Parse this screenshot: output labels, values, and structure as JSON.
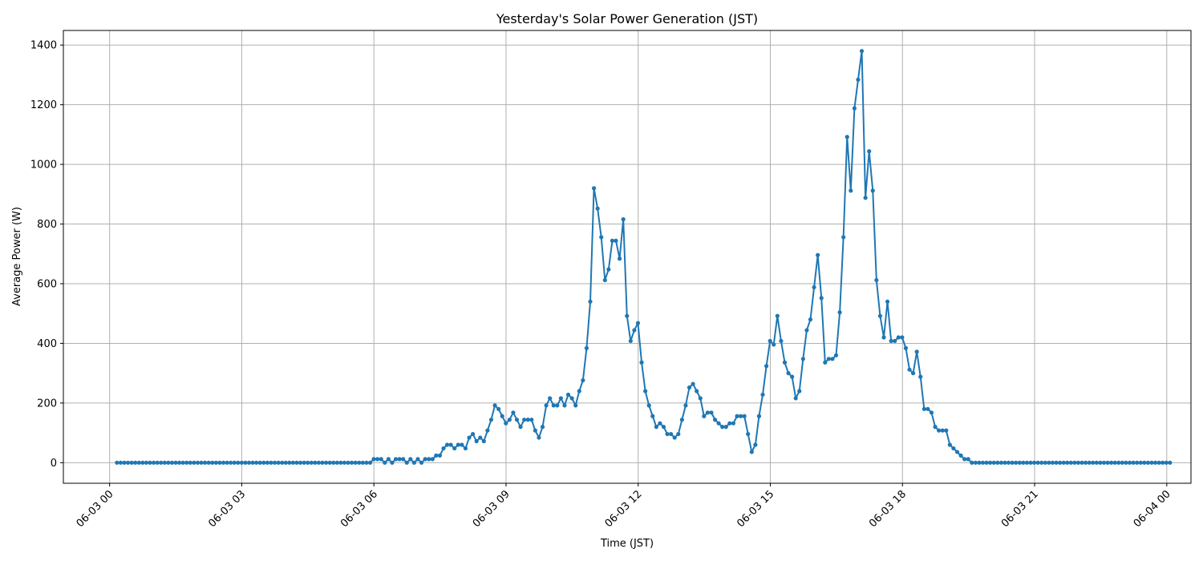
{
  "chart_data": {
    "type": "line",
    "title": "Yesterday's Solar Power Generation (JST)",
    "xlabel": "Time (JST)",
    "ylabel": "Average Power (W)",
    "grid": true,
    "marker": "circle",
    "series_color": "#1f77b4",
    "grid_color": "#b0b0b0",
    "x_axis": {
      "unit": "hours after 06-03 00:00 JST",
      "ticks": [
        0,
        3,
        6,
        9,
        12,
        15,
        18,
        21,
        24
      ],
      "tick_labels": [
        "06-03 00",
        "06-03 03",
        "06-03 06",
        "06-03 09",
        "06-03 12",
        "06-03 15",
        "06-03 18",
        "06-03 21",
        "06-04 00"
      ],
      "xlim": [
        -1.05,
        24.55
      ]
    },
    "y_axis": {
      "ticks": [
        0,
        200,
        400,
        600,
        800,
        1000,
        1200,
        1400
      ],
      "tick_labels": [
        "0",
        "200",
        "400",
        "600",
        "800",
        "1000",
        "1200",
        "1400"
      ],
      "ylim": [
        -69,
        1449
      ]
    },
    "x_start": 0.1667,
    "x_step": 0.0833,
    "series": [
      {
        "values": [
          0,
          0,
          0,
          0,
          0,
          0,
          0,
          0,
          0,
          0,
          0,
          0,
          0,
          0,
          0,
          0,
          0,
          0,
          0,
          0,
          0,
          0,
          0,
          0,
          0,
          0,
          0,
          0,
          0,
          0,
          0,
          0,
          0,
          0,
          0,
          0,
          0,
          0,
          0,
          0,
          0,
          0,
          0,
          0,
          0,
          0,
          0,
          0,
          0,
          0,
          0,
          0,
          0,
          0,
          0,
          0,
          0,
          0,
          0,
          0,
          0,
          0,
          0,
          0,
          0,
          0,
          0,
          0,
          0,
          0,
          12,
          12,
          12,
          0,
          12,
          0,
          12,
          12,
          12,
          0,
          12,
          0,
          12,
          0,
          12,
          12,
          12,
          24,
          24,
          48,
          60,
          60,
          48,
          60,
          60,
          48,
          84,
          96,
          72,
          84,
          72,
          108,
          144,
          192,
          180,
          156,
          132,
          144,
          168,
          144,
          120,
          144,
          144,
          144,
          108,
          84,
          120,
          192,
          216,
          192,
          192,
          216,
          192,
          228,
          216,
          192,
          240,
          276,
          384,
          540,
          920,
          852,
          756,
          612,
          648,
          744,
          744,
          684,
          816,
          492,
          408,
          444,
          468,
          336,
          240,
          192,
          156,
          120,
          132,
          120,
          96,
          96,
          84,
          96,
          144,
          192,
          252,
          264,
          240,
          216,
          156,
          168,
          168,
          144,
          132,
          120,
          120,
          132,
          132,
          156,
          156,
          156,
          96,
          36,
          60,
          156,
          228,
          324,
          408,
          396,
          492,
          408,
          336,
          300,
          288,
          216,
          240,
          348,
          444,
          480,
          588,
          696,
          552,
          336,
          348,
          348,
          360,
          504,
          756,
          1092,
          912,
          1188,
          1284,
          1380,
          888,
          1044,
          912,
          612,
          492,
          420,
          540,
          408,
          408,
          420,
          420,
          384,
          312,
          300,
          372,
          288,
          180,
          180,
          168,
          120,
          108,
          108,
          108,
          60,
          48,
          36,
          24,
          12,
          12,
          0,
          0,
          0,
          0,
          0,
          0,
          0,
          0,
          0,
          0,
          0,
          0,
          0,
          0,
          0,
          0,
          0,
          0,
          0,
          0,
          0,
          0,
          0,
          0,
          0,
          0,
          0,
          0,
          0,
          0,
          0,
          0,
          0,
          0,
          0,
          0,
          0,
          0,
          0,
          0,
          0,
          0,
          0,
          0,
          0,
          0,
          0,
          0,
          0,
          0,
          0,
          0,
          0,
          0,
          0
        ]
      }
    ]
  }
}
